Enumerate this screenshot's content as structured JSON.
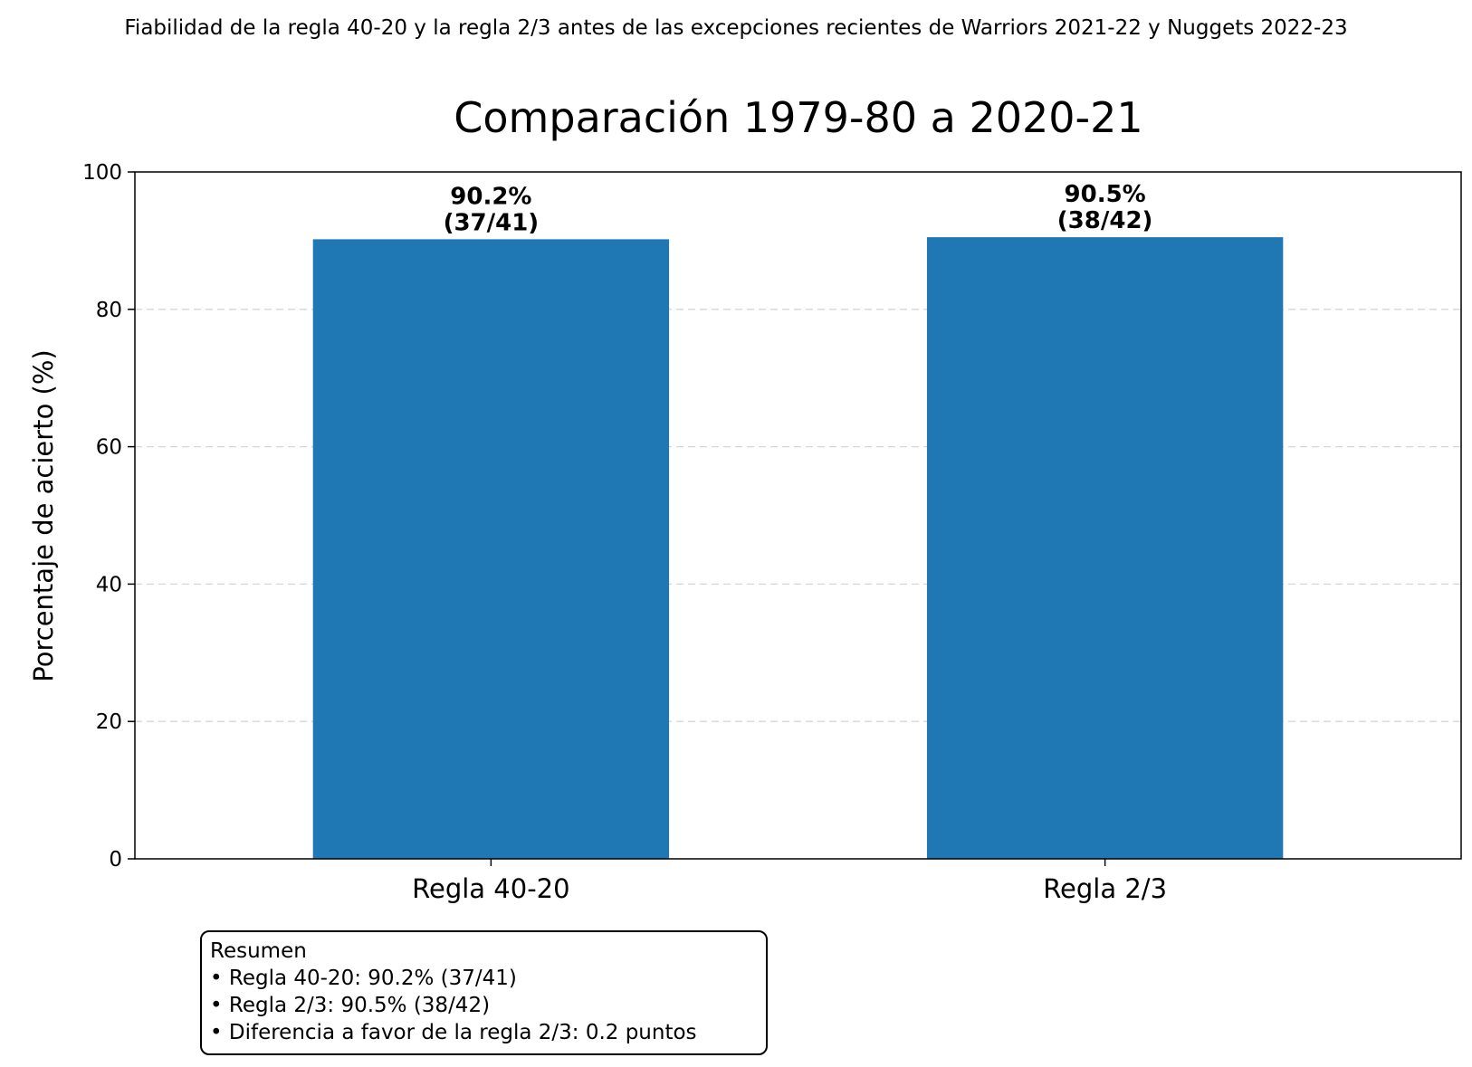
{
  "chart_data": {
    "type": "bar",
    "suptitle": "Fiabilidad de la regla 40-20 y la regla 2/3 antes de las excepciones recientes de Warriors 2021-22 y Nuggets 2022-23",
    "title": "Comparación 1979-80 a 2020-21",
    "xlabel": "",
    "ylabel": "Porcentaje de acierto (%)",
    "categories": [
      "Regla 40-20",
      "Regla 2/3"
    ],
    "values": [
      90.2,
      90.5
    ],
    "bar_labels": [
      [
        "90.2%",
        "(37/41)"
      ],
      [
        "90.5%",
        "(38/42)"
      ]
    ],
    "ylim": [
      0,
      100
    ],
    "yticks": [
      0,
      20,
      40,
      60,
      80,
      100
    ],
    "grid": "y, dashed",
    "bar_color": "#1f77b4",
    "summary": {
      "heading": "Resumen",
      "lines": [
        "• Regla 40-20: 90.2% (37/41)",
        "• Regla 2/3: 90.5% (38/42)",
        "• Diferencia a favor de la regla 2/3: 0.2 puntos"
      ]
    }
  }
}
